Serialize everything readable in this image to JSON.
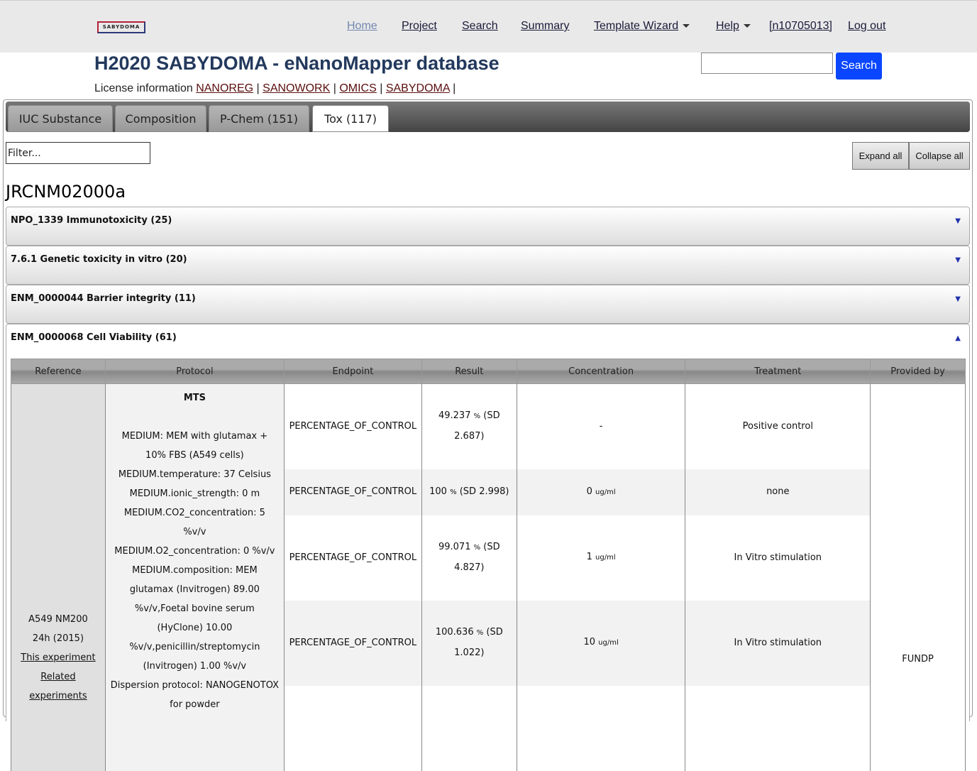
{
  "header": {
    "logo_text": "SABYDOMA",
    "nav": [
      "Home",
      "Project",
      "Search",
      "Summary",
      "Template Wizard",
      "Help",
      "[n10705013]",
      "Log out"
    ],
    "title": "H2020 SABYDOMA - eNanoMapper database",
    "license_label": "License information",
    "licenses": [
      "NANOREG",
      "SANOWORK",
      "OMICS",
      "SABYDOMA"
    ],
    "search_button": "Search",
    "search_value": ""
  },
  "tabs": [
    "IUC Substance",
    "Composition",
    "P-Chem (151)",
    "Tox (117)"
  ],
  "filter_placeholder": "Filter...",
  "expand_all": "Expand all",
  "collapse_all": "Collapse all",
  "substance": "JRCNM02000a",
  "sections": [
    "NPO_1339 Immunotoxicity (25)",
    "7.6.1 Genetic toxicity in vitro (20)",
    "ENM_0000044 Barrier integrity (11)",
    "ENM_0000068 Cell Viability (61)"
  ],
  "table": {
    "headers": [
      "Reference",
      "Protocol",
      "Endpoint",
      "Result",
      "Concentration",
      "Treatment",
      "Provided by"
    ],
    "reference": {
      "text": "A549 NM200 24h (2015)",
      "link1": "This experiment",
      "link2": "Related experiments"
    },
    "protocol": {
      "title": "MTS",
      "lines": [
        "MEDIUM: MEM with glutamax + 10% FBS (A549 cells)",
        "MEDIUM.temperature: 37 Celsius",
        "MEDIUM.ionic_strength: 0 m",
        "MEDIUM.CO2_concentration: 5 %v/v",
        "MEDIUM.O2_concentration: 0 %v/v",
        "MEDIUM.composition: MEM glutamax (Invitrogen) 89.00 %v/v,Foetal bovine serum (HyClone) 10.00 %v/v,penicillin/streptomycin (Invitrogen) 1.00 %v/v",
        "Dispersion protocol: NANOGENOTOX for powder"
      ]
    },
    "provided_by": "FUNDP",
    "rows": [
      {
        "endpoint": "PERCENTAGE_OF_CONTROL",
        "value": "49.237",
        "unit": "%",
        "sd": "(SD 2.687)",
        "conc": "-",
        "conc_unit": "",
        "treatment": "Positive control"
      },
      {
        "endpoint": "PERCENTAGE_OF_CONTROL",
        "value": "100",
        "unit": "%",
        "sd": "(SD 2.998)",
        "conc": "0",
        "conc_unit": "ug/ml",
        "treatment": "none"
      },
      {
        "endpoint": "PERCENTAGE_OF_CONTROL",
        "value": "99.071",
        "unit": "%",
        "sd": "(SD 4.827)",
        "conc": "1",
        "conc_unit": "ug/ml",
        "treatment": "In Vitro stimulation"
      },
      {
        "endpoint": "PERCENTAGE_OF_CONTROL",
        "value": "100.636",
        "unit": "%",
        "sd": "(SD 1.022)",
        "conc": "10",
        "conc_unit": "ug/ml",
        "treatment": "In Vitro stimulation"
      }
    ]
  }
}
